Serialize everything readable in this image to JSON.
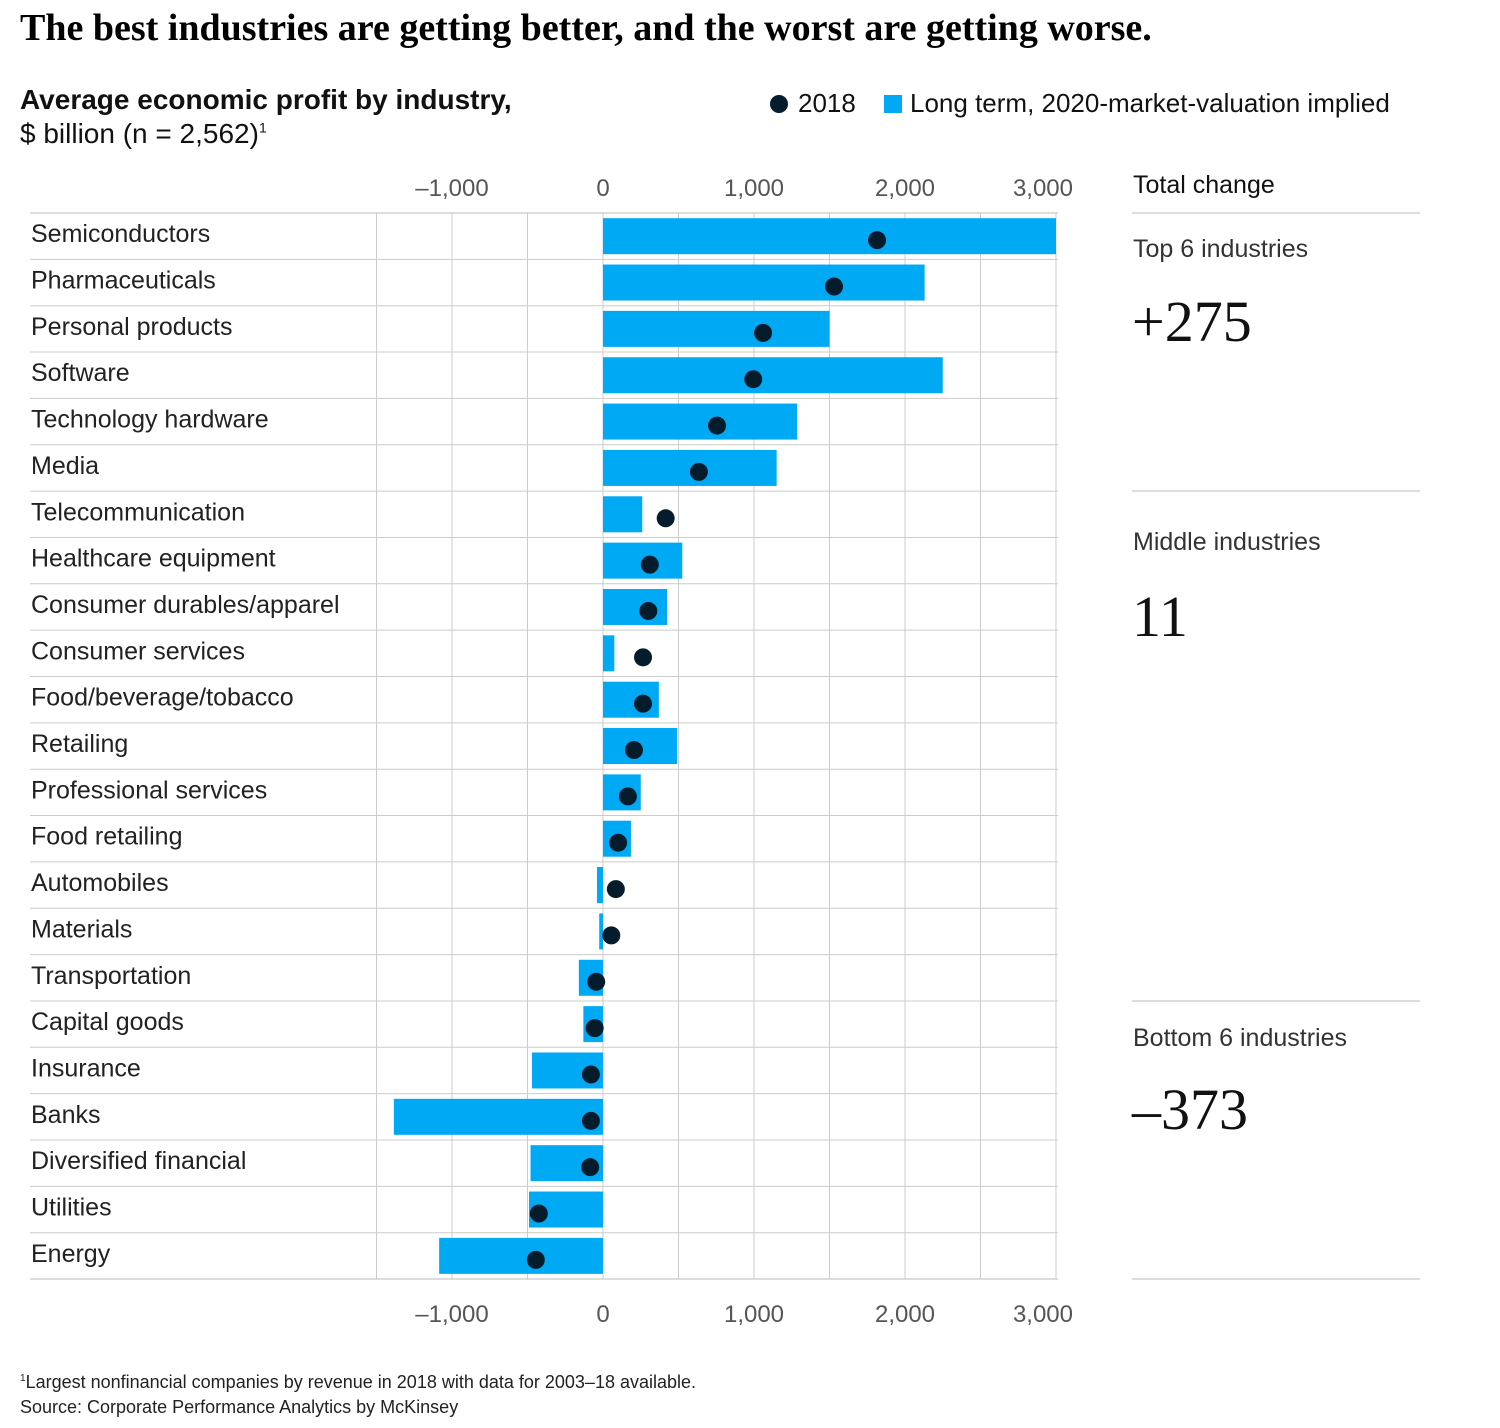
{
  "title": "The best industries are getting better, and the worst are getting worse.",
  "subtitle": "Average economic profit by industry,",
  "units": "$ billion (n = 2,562)",
  "units_footnote_mark": "1",
  "legend": {
    "dot": "2018",
    "bar": "Long term, 2020-market-valuation implied"
  },
  "colors": {
    "bar": "#00a9f4",
    "dot": "#051c2c",
    "grid": "#cccccc"
  },
  "side_panel": {
    "header": "Total change",
    "groups": [
      {
        "label": "Top 6 industries",
        "value": "+275"
      },
      {
        "label": "Middle industries",
        "value": "11"
      },
      {
        "label": "Bottom 6 industries",
        "value": "–373"
      }
    ]
  },
  "footnote": {
    "mark": "1",
    "text": "Largest nonfinancial companies by revenue in 2018 with data for 2003–18 available.",
    "source": "Source: Corporate Performance Analytics by McKinsey"
  },
  "chart_data": {
    "type": "bar",
    "orientation": "horizontal",
    "xlim": [
      -1500,
      3000
    ],
    "ticks": [
      -1000,
      0,
      1000,
      2000,
      3000
    ],
    "tick_labels": [
      "–1,000",
      "0",
      "1,000",
      "2,000",
      "3,000"
    ],
    "grid": true,
    "legend_position": "top-right",
    "categories": [
      "Semiconductors",
      "Pharmaceuticals",
      "Personal products",
      "Software",
      "Technology hardware",
      "Media",
      "Telecommunication",
      "Healthcare equipment",
      "Consumer durables/apparel",
      "Consumer services",
      "Food/beverage/tobacco",
      "Retailing",
      "Professional services",
      "Food retailing",
      "Automobiles",
      "Materials",
      "Transportation",
      "Capital goods",
      "Insurance",
      "Banks",
      "Diversified financial",
      "Utilities",
      "Energy"
    ],
    "series": [
      {
        "name": "Long term, 2020-market-valuation implied",
        "type": "bar",
        "values": [
          3000,
          2130,
          1500,
          2250,
          1285,
          1150,
          260,
          525,
          425,
          75,
          370,
          490,
          250,
          185,
          -40,
          -25,
          -160,
          -130,
          -470,
          -1385,
          -480,
          -490,
          -1085
        ]
      },
      {
        "name": "2018",
        "type": "dot",
        "values": [
          1815,
          1530,
          1060,
          995,
          755,
          635,
          415,
          310,
          300,
          265,
          265,
          205,
          165,
          100,
          85,
          55,
          -45,
          -55,
          -80,
          -80,
          -85,
          -425,
          -445
        ]
      }
    ]
  }
}
